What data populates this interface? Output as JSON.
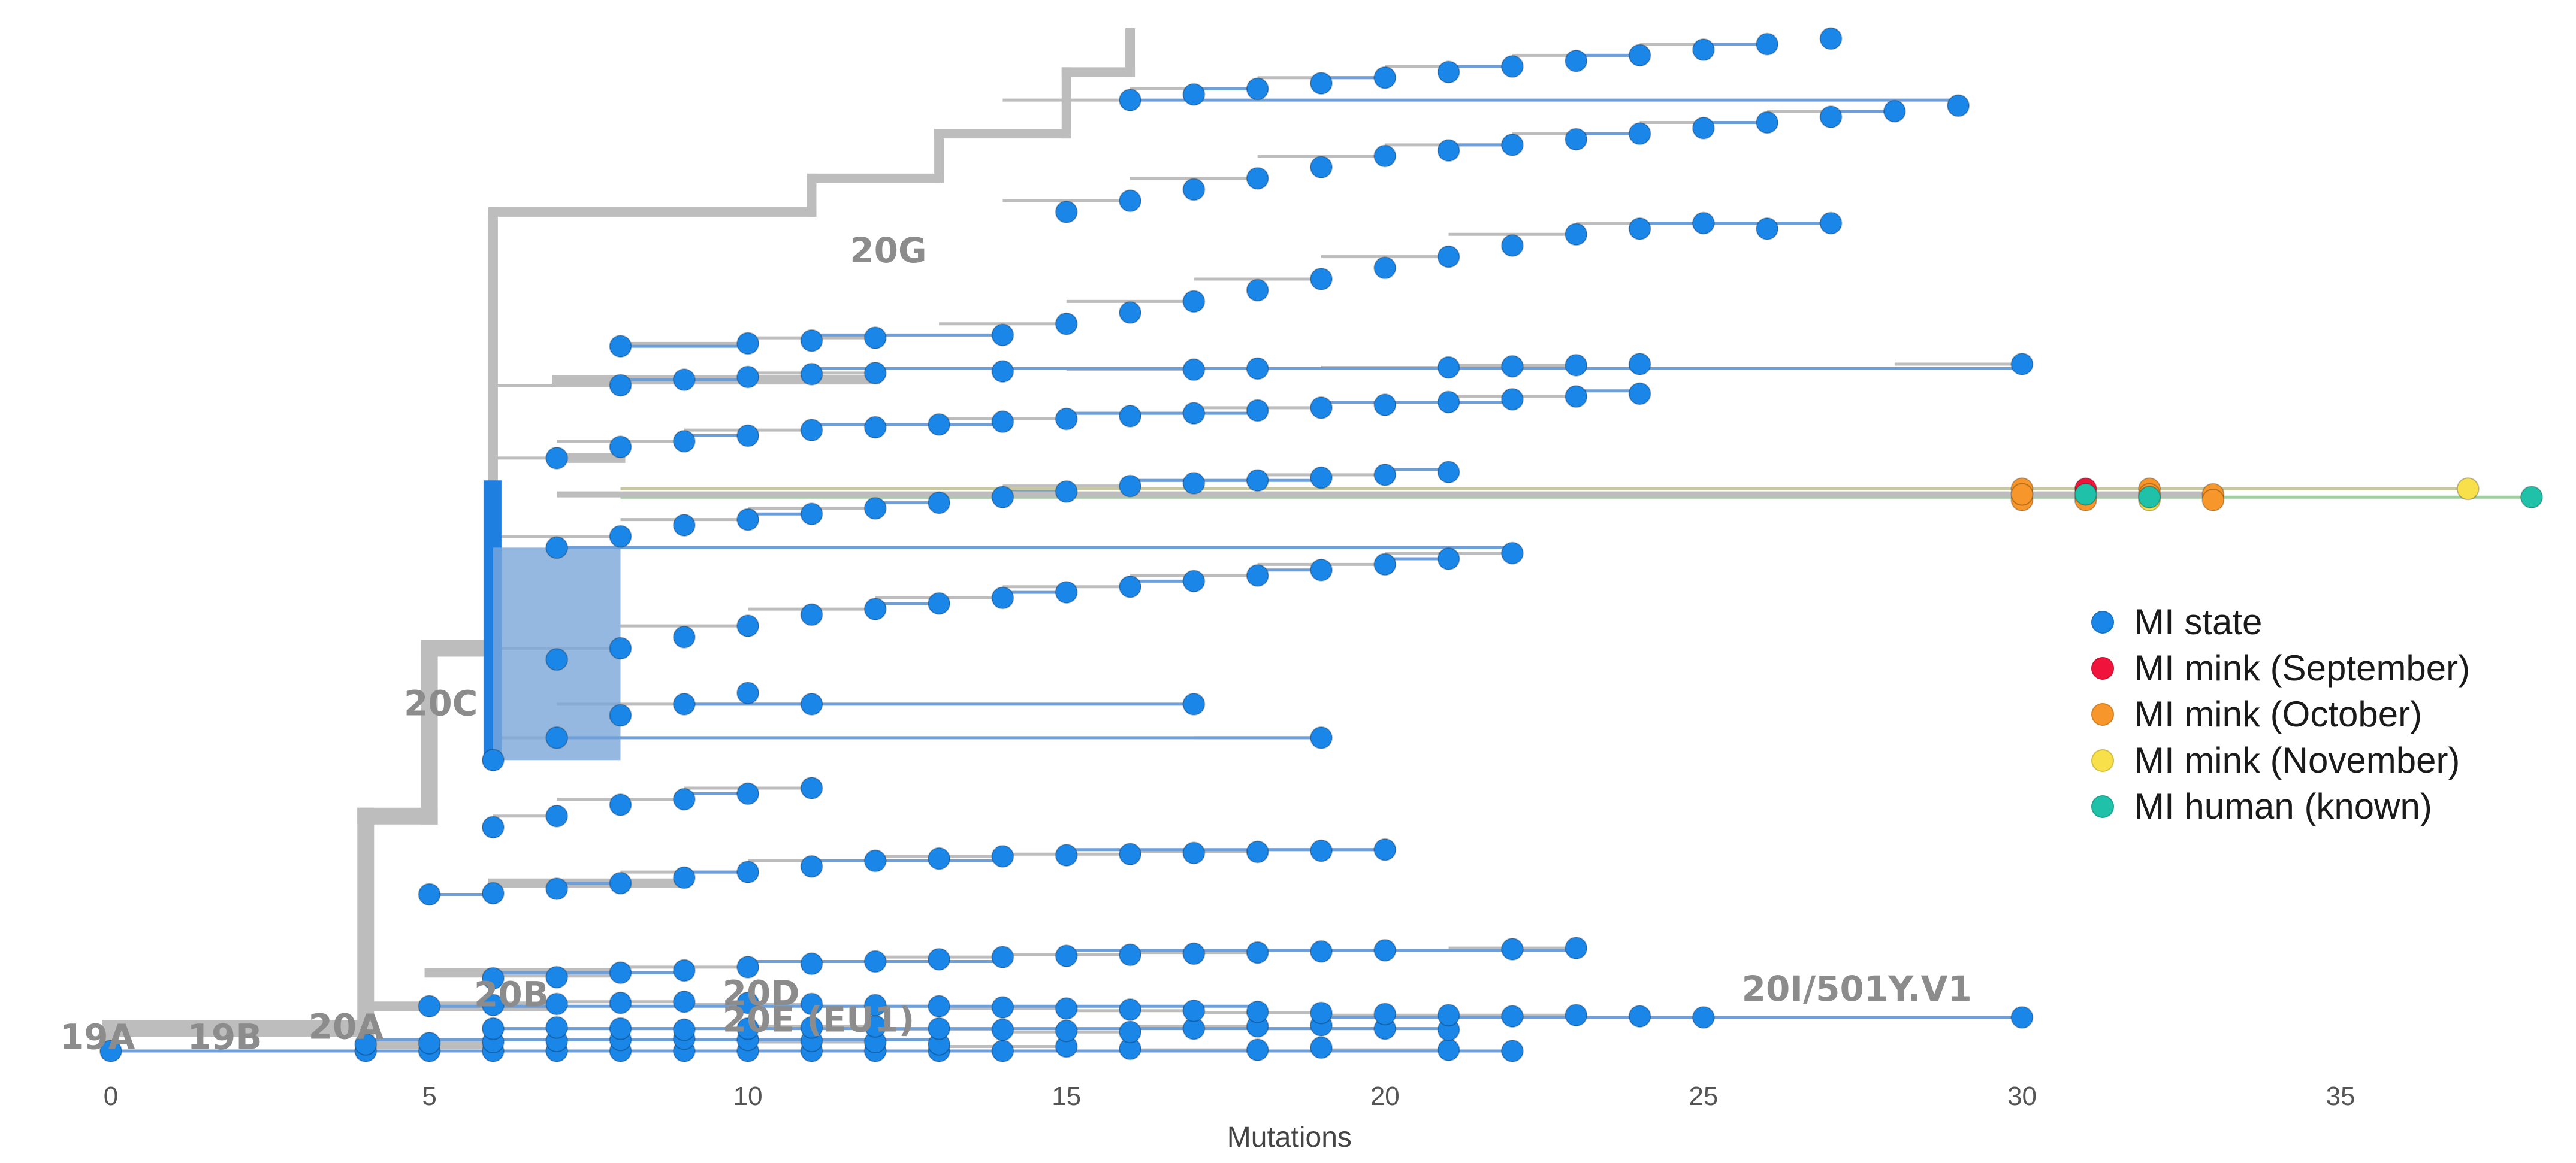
{
  "chart_data": {
    "type": "scatter",
    "title": "",
    "xlabel": "Mutations",
    "ylabel": "",
    "xlim": [
      0,
      38
    ],
    "x_ticks": [
      0,
      5,
      10,
      15,
      20,
      25,
      30,
      35
    ],
    "tree_color": "#bdbdbd",
    "line_color": "#6f9fd8",
    "clade_labels": [
      {
        "text": "19A",
        "x": -0.8,
        "y": 4
      },
      {
        "text": "19B",
        "x": 1.2,
        "y": 4
      },
      {
        "text": "20A",
        "x": 3.1,
        "y": 22
      },
      {
        "text": "20B",
        "x": 5.7,
        "y": 80
      },
      {
        "text": "20C",
        "x": 4.6,
        "y": 600
      },
      {
        "text": "20D",
        "x": 9.6,
        "y": 82
      },
      {
        "text": "20E (EU1)",
        "x": 9.6,
        "y": 35
      },
      {
        "text": "20G",
        "x": 11.6,
        "y": 1410
      },
      {
        "text": "20I/501Y.V1",
        "x": 25.6,
        "y": 90
      }
    ],
    "series": [
      {
        "name": "MI state",
        "color": "#1a86e8",
        "points": [
          [
            0,
            0
          ],
          [
            4,
            0
          ],
          [
            5,
            0
          ],
          [
            6,
            0
          ],
          [
            7,
            0
          ],
          [
            8,
            0
          ],
          [
            9,
            0
          ],
          [
            10,
            0
          ],
          [
            11,
            0
          ],
          [
            12,
            0
          ],
          [
            13,
            0
          ],
          [
            14,
            0
          ],
          [
            4,
            12
          ],
          [
            5,
            14
          ],
          [
            6,
            16
          ],
          [
            7,
            18
          ],
          [
            8,
            20
          ],
          [
            9,
            22
          ],
          [
            10,
            20
          ],
          [
            11,
            18
          ],
          [
            12,
            16
          ],
          [
            13,
            12
          ],
          [
            15,
            8
          ],
          [
            16,
            4
          ],
          [
            18,
            2
          ],
          [
            19,
            6
          ],
          [
            21,
            2
          ],
          [
            22,
            0
          ],
          [
            6,
            40
          ],
          [
            7,
            42
          ],
          [
            8,
            40
          ],
          [
            9,
            38
          ],
          [
            10,
            40
          ],
          [
            11,
            42
          ],
          [
            12,
            44
          ],
          [
            13,
            40
          ],
          [
            14,
            38
          ],
          [
            15,
            36
          ],
          [
            16,
            34
          ],
          [
            17,
            40
          ],
          [
            18,
            44
          ],
          [
            19,
            46
          ],
          [
            20,
            40
          ],
          [
            21,
            38
          ],
          [
            5,
            80
          ],
          [
            6,
            82
          ],
          [
            7,
            84
          ],
          [
            8,
            86
          ],
          [
            9,
            88
          ],
          [
            10,
            86
          ],
          [
            11,
            84
          ],
          [
            12,
            82
          ],
          [
            13,
            80
          ],
          [
            14,
            78
          ],
          [
            15,
            76
          ],
          [
            16,
            74
          ],
          [
            17,
            72
          ],
          [
            18,
            70
          ],
          [
            19,
            68
          ],
          [
            20,
            66
          ],
          [
            21,
            64
          ],
          [
            22,
            62
          ],
          [
            23,
            64
          ],
          [
            24,
            62
          ],
          [
            25,
            60
          ],
          [
            30,
            60
          ],
          [
            6,
            130
          ],
          [
            7,
            132
          ],
          [
            8,
            140
          ],
          [
            9,
            144
          ],
          [
            10,
            150
          ],
          [
            11,
            156
          ],
          [
            12,
            160
          ],
          [
            13,
            164
          ],
          [
            14,
            168
          ],
          [
            15,
            170
          ],
          [
            16,
            172
          ],
          [
            17,
            174
          ],
          [
            18,
            176
          ],
          [
            19,
            178
          ],
          [
            20,
            180
          ],
          [
            22,
            182
          ],
          [
            23,
            184
          ],
          [
            5,
            280
          ],
          [
            6,
            282
          ],
          [
            7,
            290
          ],
          [
            8,
            300
          ],
          [
            9,
            310
          ],
          [
            10,
            320
          ],
          [
            11,
            330
          ],
          [
            12,
            340
          ],
          [
            13,
            344
          ],
          [
            14,
            348
          ],
          [
            15,
            350
          ],
          [
            16,
            352
          ],
          [
            17,
            354
          ],
          [
            18,
            356
          ],
          [
            19,
            358
          ],
          [
            20,
            360
          ],
          [
            6,
            400
          ],
          [
            7,
            420
          ],
          [
            8,
            440
          ],
          [
            9,
            450
          ],
          [
            10,
            460
          ],
          [
            11,
            470
          ],
          [
            6,
            520
          ],
          [
            7,
            560
          ],
          [
            8,
            600
          ],
          [
            9,
            620
          ],
          [
            10,
            640
          ],
          [
            11,
            620
          ],
          [
            17,
            620
          ],
          [
            19,
            560
          ],
          [
            7,
            700
          ],
          [
            8,
            720
          ],
          [
            9,
            740
          ],
          [
            10,
            760
          ],
          [
            11,
            780
          ],
          [
            12,
            790
          ],
          [
            13,
            800
          ],
          [
            14,
            810
          ],
          [
            15,
            820
          ],
          [
            16,
            830
          ],
          [
            17,
            840
          ],
          [
            18,
            850
          ],
          [
            19,
            860
          ],
          [
            20,
            870
          ],
          [
            21,
            880
          ],
          [
            22,
            890
          ],
          [
            7,
            900
          ],
          [
            8,
            920
          ],
          [
            9,
            940
          ],
          [
            10,
            950
          ],
          [
            11,
            960
          ],
          [
            12,
            970
          ],
          [
            13,
            980
          ],
          [
            14,
            990
          ],
          [
            15,
            1000
          ],
          [
            16,
            1010
          ],
          [
            17,
            1015
          ],
          [
            18,
            1020
          ],
          [
            19,
            1025
          ],
          [
            20,
            1030
          ],
          [
            21,
            1035
          ],
          [
            7,
            1060
          ],
          [
            8,
            1080
          ],
          [
            9,
            1090
          ],
          [
            10,
            1100
          ],
          [
            11,
            1110
          ],
          [
            12,
            1115
          ],
          [
            13,
            1120
          ],
          [
            14,
            1125
          ],
          [
            15,
            1130
          ],
          [
            16,
            1135
          ],
          [
            17,
            1140
          ],
          [
            18,
            1145
          ],
          [
            19,
            1150
          ],
          [
            20,
            1155
          ],
          [
            21,
            1160
          ],
          [
            22,
            1165
          ],
          [
            23,
            1170
          ],
          [
            24,
            1175
          ],
          [
            8,
            1190
          ],
          [
            9,
            1200
          ],
          [
            10,
            1205
          ],
          [
            11,
            1210
          ],
          [
            12,
            1212
          ],
          [
            14,
            1215
          ],
          [
            17,
            1218
          ],
          [
            18,
            1220
          ],
          [
            21,
            1222
          ],
          [
            22,
            1224
          ],
          [
            23,
            1226
          ],
          [
            24,
            1228
          ],
          [
            30,
            1228
          ],
          [
            8,
            1260
          ],
          [
            10,
            1265
          ],
          [
            11,
            1270
          ],
          [
            12,
            1275
          ],
          [
            14,
            1280
          ],
          [
            15,
            1300
          ],
          [
            16,
            1320
          ],
          [
            17,
            1340
          ],
          [
            18,
            1360
          ],
          [
            19,
            1380
          ],
          [
            20,
            1400
          ],
          [
            21,
            1420
          ],
          [
            22,
            1440
          ],
          [
            23,
            1460
          ],
          [
            24,
            1470
          ],
          [
            25,
            1480
          ],
          [
            26,
            1470
          ],
          [
            27,
            1480
          ],
          [
            15,
            1500
          ],
          [
            16,
            1520
          ],
          [
            17,
            1540
          ],
          [
            18,
            1560
          ],
          [
            19,
            1580
          ],
          [
            20,
            1600
          ],
          [
            21,
            1610
          ],
          [
            22,
            1620
          ],
          [
            23,
            1630
          ],
          [
            24,
            1640
          ],
          [
            25,
            1650
          ],
          [
            26,
            1660
          ],
          [
            27,
            1670
          ],
          [
            28,
            1680
          ],
          [
            29,
            1690
          ],
          [
            16,
            1700
          ],
          [
            17,
            1710
          ],
          [
            18,
            1720
          ],
          [
            19,
            1730
          ],
          [
            20,
            1740
          ],
          [
            21,
            1750
          ],
          [
            22,
            1760
          ],
          [
            23,
            1770
          ],
          [
            24,
            1780
          ],
          [
            25,
            1790
          ],
          [
            26,
            1800
          ],
          [
            27,
            1810
          ]
        ]
      },
      {
        "name": "MI mink (September)",
        "color": "#f0143c",
        "points": [
          [
            31,
            1005
          ]
        ]
      },
      {
        "name": "MI mink (October)",
        "color": "#f7962a",
        "points": [
          [
            30,
            1005
          ],
          [
            30,
            985
          ],
          [
            31,
            985
          ],
          [
            32,
            1005
          ],
          [
            32,
            995
          ],
          [
            33,
            995
          ],
          [
            33,
            985
          ],
          [
            30,
            995
          ]
        ]
      },
      {
        "name": "MI mink (November)",
        "color": "#f7e04a",
        "points": [
          [
            37,
            1005
          ],
          [
            32,
            985
          ]
        ]
      },
      {
        "name": "MI human (known)",
        "color": "#1fc1a8",
        "points": [
          [
            31,
            995
          ],
          [
            32,
            990
          ],
          [
            38,
            990
          ]
        ]
      }
    ],
    "legend": [
      {
        "label": "MI state",
        "color": "#1a86e8"
      },
      {
        "label": "MI mink (September)",
        "color": "#f0143c"
      },
      {
        "label": "MI mink (October)",
        "color": "#f7962a"
      },
      {
        "label": "MI mink (November)",
        "color": "#f7e04a"
      },
      {
        "label": "MI human (known)",
        "color": "#1fc1a8"
      }
    ]
  }
}
